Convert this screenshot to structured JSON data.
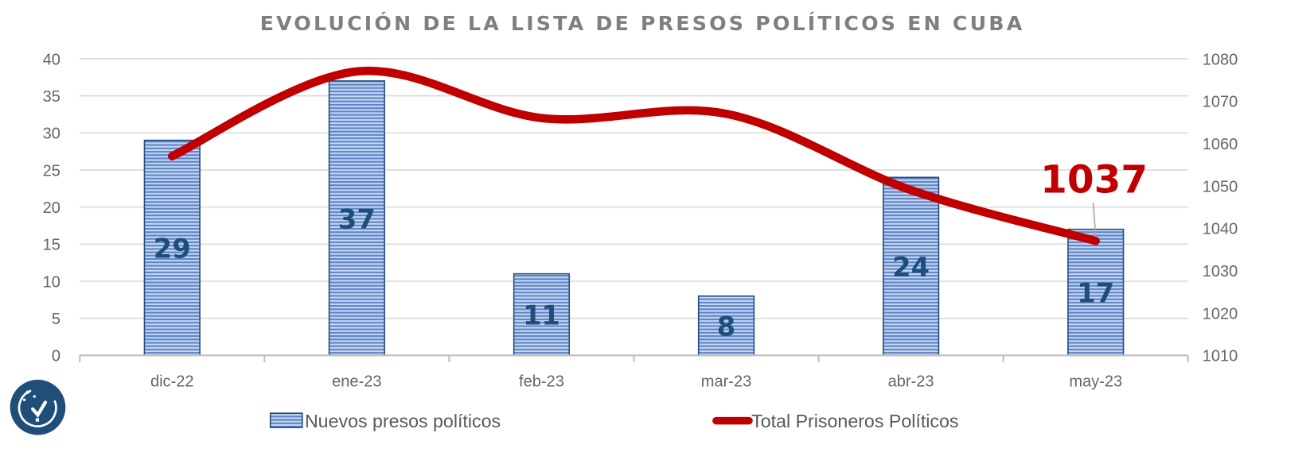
{
  "chart_data": {
    "type": "bar+line",
    "title": "EVOLUCIÓN DE LA LISTA DE PRESOS POLÍTICOS EN CUBA",
    "categories": [
      "dic-22",
      "ene-23",
      "feb-23",
      "mar-23",
      "abr-23",
      "may-23"
    ],
    "series": [
      {
        "name": "Nuevos presos políticos",
        "type": "bar",
        "axis": "left",
        "values": [
          29,
          37,
          11,
          8,
          24,
          17
        ],
        "color": "#4472c4",
        "border": "#1f4e79"
      },
      {
        "name": "Total Prisoneros Políticos",
        "type": "line",
        "axis": "right",
        "smooth": true,
        "values": [
          1057,
          1077,
          1066,
          1067,
          1049,
          1037
        ],
        "color": "#c00000"
      }
    ],
    "left_axis": {
      "ylim": [
        0,
        40
      ],
      "ticks": [
        "0",
        "5",
        "10",
        "15",
        "20",
        "25",
        "30",
        "35",
        "40"
      ]
    },
    "right_axis": {
      "ylim": [
        1010,
        1080
      ],
      "ticks": [
        "1010",
        "1020",
        "1030",
        "1040",
        "1050",
        "1060",
        "1070",
        "1080"
      ]
    },
    "data_labels": [
      "29",
      "37",
      "11",
      "8",
      "24",
      "17"
    ],
    "annotation": "1037",
    "grid": true,
    "legend": "bottom"
  },
  "logo": {
    "name": "cookie-check-logo",
    "color": "#1f4e79"
  }
}
